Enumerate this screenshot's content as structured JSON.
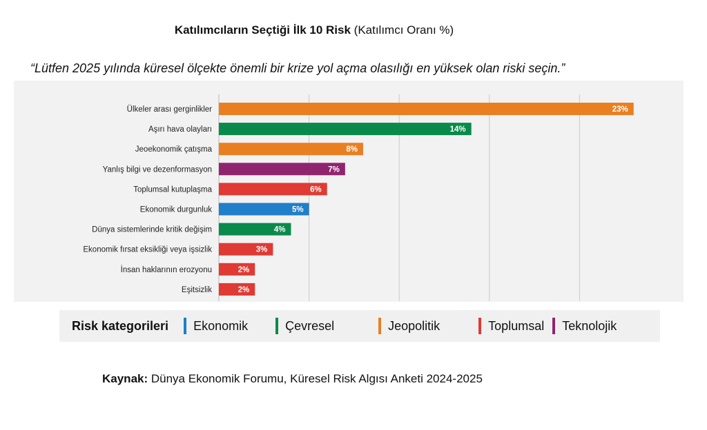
{
  "header": {
    "title_bold": "Katılımcıların Seçtiği İlk 10 Risk",
    "title_rest": "(Katılımcı Oranı %)",
    "question": "“Lütfen 2025 yılında küresel ölçekte önemli bir krize yol açma olasılığı en yüksek olan riski seçin.”"
  },
  "legend": {
    "title": "Risk kategorileri",
    "items": [
      {
        "label": "Ekonomik",
        "color": "#1f7fc8"
      },
      {
        "label": "Çevresel",
        "color": "#0a8a4a"
      },
      {
        "label": "Jeopolitik",
        "color": "#ea7f22"
      },
      {
        "label": "Toplumsal",
        "color": "#e03a34"
      },
      {
        "label": "Teknolojik",
        "color": "#91246f"
      }
    ]
  },
  "source": {
    "label": "Kaynak:",
    "text": "Dünya Ekonomik Forumu, Küresel Risk Algısı Anketi 2024-2025"
  },
  "chart_data": {
    "type": "bar",
    "orientation": "horizontal",
    "categories": [
      "Ülkeler arası gerginlikler",
      "Aşırı hava olayları",
      "Jeoekonomik çatışma",
      "Yanlış bilgi ve dezenformasyon",
      "Toplumsal kutuplaşma",
      "Ekonomik durgunluk",
      "Dünya sistemlerinde kritik değişim",
      "Ekonomik fırsat eksikliği veya işsizlik",
      "İnsan haklarının erozyonu",
      "Eşitsizlik"
    ],
    "values": [
      23,
      14,
      8,
      7,
      6,
      5,
      4,
      3,
      2,
      2
    ],
    "labels": [
      "23%",
      "14%",
      "8%",
      "7%",
      "6%",
      "5%",
      "4%",
      "3%",
      "2%",
      "2%"
    ],
    "bar_categories": [
      "Jeopolitik",
      "Çevresel",
      "Jeopolitik",
      "Teknolojik",
      "Toplumsal",
      "Ekonomik",
      "Çevresel",
      "Toplumsal",
      "Toplumsal",
      "Toplumsal"
    ],
    "colors": [
      "#ea7f22",
      "#0a8a4a",
      "#ea7f22",
      "#91246f",
      "#e03a34",
      "#1f7fc8",
      "#0a8a4a",
      "#e03a34",
      "#e03a34",
      "#e03a34"
    ],
    "xlim": [
      0,
      25
    ],
    "grid": true
  }
}
